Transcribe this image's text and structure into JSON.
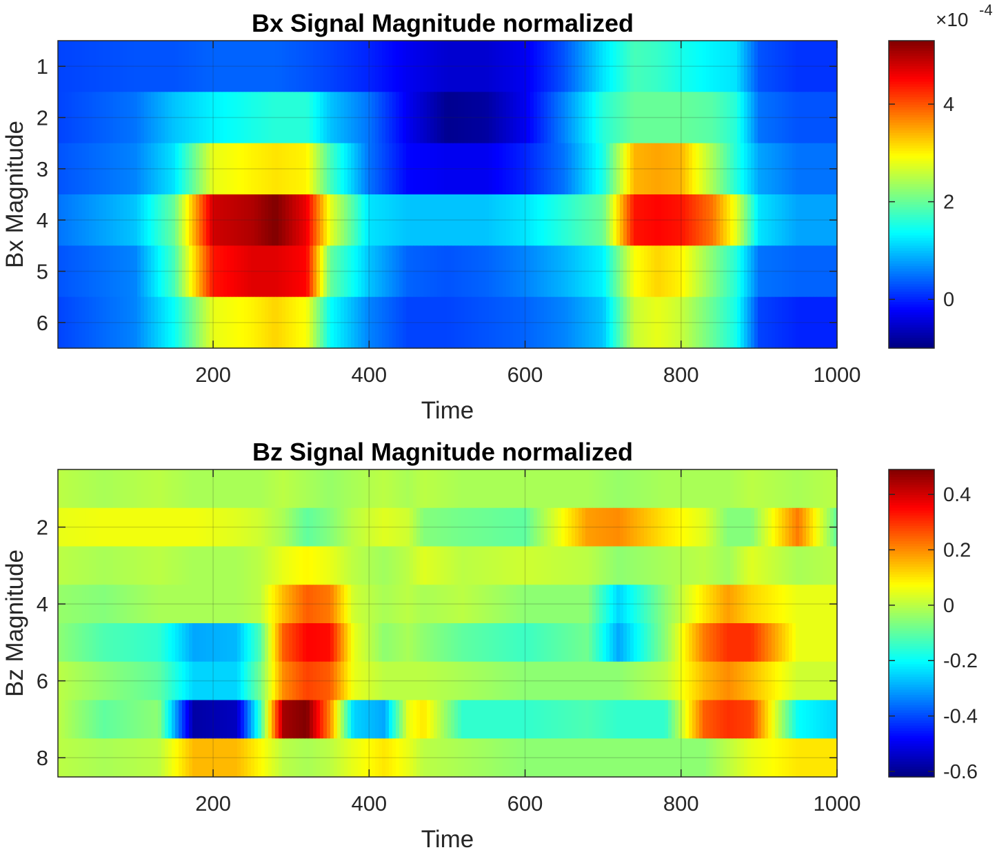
{
  "chart_data": [
    {
      "type": "heatmap",
      "title": "Bx Signal Magnitude normalized",
      "xlabel": "Time",
      "ylabel": "Bx Magnitude",
      "xlim": [
        1,
        1000
      ],
      "xticks": [
        200,
        400,
        600,
        800,
        1000
      ],
      "rows": [
        1,
        2,
        3,
        4,
        5,
        6
      ],
      "yticks": [
        1,
        2,
        3,
        4,
        5,
        6
      ],
      "colormap": "jet",
      "clim": [
        -1.0,
        5.3
      ],
      "colorbar_ticks": [
        0,
        2,
        4
      ],
      "colorbar_multiplier": "-4",
      "grid": true,
      "profile_x": [
        1,
        100,
        150,
        200,
        250,
        280,
        320,
        350,
        400,
        450,
        500,
        550,
        600,
        650,
        700,
        740,
        770,
        800,
        840,
        870,
        900,
        950,
        1000
      ],
      "values": [
        [
          0.2,
          0.3,
          0.3,
          0.4,
          0.4,
          0.4,
          0.3,
          0.2,
          0.0,
          -0.3,
          -0.5,
          -0.5,
          -0.3,
          0.3,
          1.2,
          1.8,
          1.7,
          1.5,
          1.3,
          1.2,
          0.3,
          0.1,
          0.1
        ],
        [
          0.2,
          0.5,
          1.0,
          1.3,
          1.5,
          1.6,
          1.6,
          1.0,
          0.5,
          -0.3,
          -0.9,
          -0.8,
          -0.3,
          0.6,
          1.6,
          2.0,
          2.0,
          2.0,
          1.9,
          1.6,
          0.5,
          0.3,
          0.3
        ],
        [
          0.3,
          0.6,
          1.2,
          2.8,
          3.0,
          3.1,
          3.0,
          1.8,
          0.5,
          -0.2,
          -0.3,
          -0.3,
          0.0,
          0.5,
          1.5,
          3.4,
          3.5,
          3.4,
          2.4,
          1.6,
          0.8,
          0.5,
          0.5
        ],
        [
          0.5,
          1.0,
          2.0,
          4.8,
          5.0,
          5.3,
          4.6,
          2.8,
          1.2,
          1.0,
          1.0,
          1.0,
          1.2,
          1.6,
          2.0,
          4.4,
          4.5,
          4.4,
          3.8,
          2.8,
          1.2,
          0.8,
          0.8
        ],
        [
          0.3,
          0.6,
          1.8,
          4.4,
          4.7,
          4.7,
          4.5,
          2.0,
          1.0,
          0.4,
          0.3,
          0.4,
          0.6,
          0.9,
          1.3,
          2.9,
          3.2,
          3.0,
          2.2,
          1.6,
          0.5,
          0.4,
          0.4
        ],
        [
          0.2,
          0.6,
          1.4,
          2.8,
          3.0,
          3.2,
          2.9,
          1.4,
          0.6,
          0.2,
          0.2,
          0.3,
          0.4,
          0.6,
          1.0,
          2.6,
          2.8,
          2.6,
          2.0,
          1.5,
          0.2,
          0.0,
          0.0
        ]
      ]
    },
    {
      "type": "heatmap",
      "title": "Bz Signal Magnitude normalized",
      "xlabel": "Time",
      "ylabel": "Bz Magnitude",
      "xlim": [
        1,
        1000
      ],
      "xticks": [
        200,
        400,
        600,
        800,
        1000
      ],
      "rows": [
        1,
        2,
        3,
        4,
        5,
        6,
        7,
        8
      ],
      "yticks": [
        2,
        4,
        6,
        8
      ],
      "colormap": "jet",
      "clim": [
        -0.62,
        0.49
      ],
      "colorbar_ticks": [
        -0.6,
        -0.4,
        -0.2,
        0,
        0.2,
        0.4
      ],
      "grid": true,
      "profile_x": [
        1,
        60,
        130,
        175,
        230,
        260,
        290,
        320,
        350,
        380,
        420,
        450,
        470,
        520,
        600,
        680,
        720,
        780,
        830,
        860,
        890,
        950,
        1000
      ],
      "values": [
        [
          0.0,
          -0.02,
          0.0,
          -0.02,
          -0.02,
          -0.02,
          0.0,
          -0.02,
          -0.04,
          -0.02,
          0.0,
          -0.02,
          0.0,
          -0.02,
          -0.02,
          -0.02,
          -0.04,
          -0.02,
          -0.02,
          -0.02,
          0.0,
          -0.02,
          0.0
        ],
        [
          0.05,
          0.06,
          0.06,
          0.06,
          0.04,
          0.02,
          -0.02,
          -0.1,
          -0.06,
          0.0,
          0.04,
          0.02,
          -0.06,
          -0.08,
          -0.1,
          0.18,
          0.2,
          0.1,
          0.04,
          -0.06,
          -0.06,
          0.22,
          -0.1
        ],
        [
          0.0,
          -0.02,
          0.0,
          -0.02,
          -0.02,
          0.0,
          0.05,
          0.08,
          0.05,
          0.0,
          -0.03,
          0.0,
          0.04,
          0.0,
          0.02,
          0.0,
          -0.05,
          -0.02,
          0.0,
          -0.03,
          0.04,
          -0.02,
          0.0
        ],
        [
          -0.04,
          -0.06,
          -0.02,
          -0.02,
          -0.02,
          0.0,
          0.15,
          0.25,
          0.22,
          0.02,
          -0.02,
          0.0,
          -0.02,
          0.0,
          -0.05,
          -0.05,
          -0.25,
          -0.05,
          0.1,
          0.18,
          0.12,
          0.05,
          0.05
        ],
        [
          -0.05,
          -0.12,
          -0.15,
          -0.3,
          -0.28,
          -0.12,
          0.25,
          0.35,
          0.34,
          0.05,
          -0.05,
          -0.02,
          -0.05,
          -0.1,
          -0.14,
          -0.08,
          -0.3,
          -0.05,
          0.22,
          0.3,
          0.3,
          0.05,
          0.05
        ],
        [
          0.0,
          -0.05,
          -0.1,
          -0.25,
          -0.25,
          -0.08,
          0.2,
          0.28,
          0.25,
          0.05,
          0.0,
          0.0,
          0.0,
          -0.02,
          -0.05,
          -0.05,
          -0.05,
          0.0,
          0.15,
          0.2,
          0.15,
          0.02,
          0.02
        ],
        [
          0.0,
          -0.1,
          -0.05,
          -0.58,
          -0.55,
          -0.15,
          0.45,
          0.49,
          0.2,
          -0.25,
          -0.3,
          0.05,
          0.1,
          -0.15,
          -0.15,
          -0.12,
          -0.15,
          -0.15,
          0.25,
          0.3,
          0.28,
          -0.2,
          -0.25
        ],
        [
          0.0,
          -0.02,
          0.0,
          0.15,
          0.15,
          0.08,
          0.0,
          -0.02,
          0.0,
          0.05,
          0.1,
          0.05,
          0.0,
          -0.02,
          -0.05,
          -0.05,
          -0.05,
          -0.05,
          -0.05,
          0.0,
          0.05,
          0.1,
          0.1
        ]
      ]
    }
  ]
}
